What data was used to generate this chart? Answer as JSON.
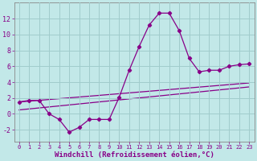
{
  "xlabel": "Windchill (Refroidissement éolien,°C)",
  "background_color": "#c2e8e8",
  "grid_color": "#a0cccc",
  "line_color": "#880088",
  "spine_color": "#888888",
  "x_ticks": [
    0,
    1,
    2,
    3,
    4,
    5,
    6,
    7,
    8,
    9,
    10,
    11,
    12,
    13,
    14,
    15,
    16,
    17,
    18,
    19,
    20,
    21,
    22,
    23
  ],
  "y_ticks": [
    -2,
    0,
    2,
    4,
    6,
    8,
    10,
    12
  ],
  "ylim": [
    -3.5,
    14.0
  ],
  "xlim": [
    -0.5,
    23.5
  ],
  "line1_x": [
    0,
    1,
    2,
    3,
    4,
    5,
    6,
    7,
    8,
    9,
    10,
    11,
    12,
    13,
    14,
    15,
    16,
    17,
    18,
    19,
    20,
    21,
    22,
    23
  ],
  "line1_y": [
    1.5,
    1.7,
    1.7,
    0.0,
    -0.7,
    -2.3,
    -1.7,
    -0.7,
    -0.7,
    -0.7,
    2.1,
    5.5,
    8.5,
    11.2,
    12.7,
    12.7,
    10.5,
    7.0,
    5.3,
    5.5,
    5.5,
    6.0,
    6.2,
    6.3
  ],
  "line2_x": [
    0,
    23
  ],
  "line2_y": [
    1.5,
    3.9
  ],
  "line3_x": [
    0,
    23
  ],
  "line3_y": [
    0.5,
    3.4
  ],
  "xlabel_fontsize": 6.5,
  "ytick_fontsize": 6.0,
  "xtick_fontsize": 5.0
}
